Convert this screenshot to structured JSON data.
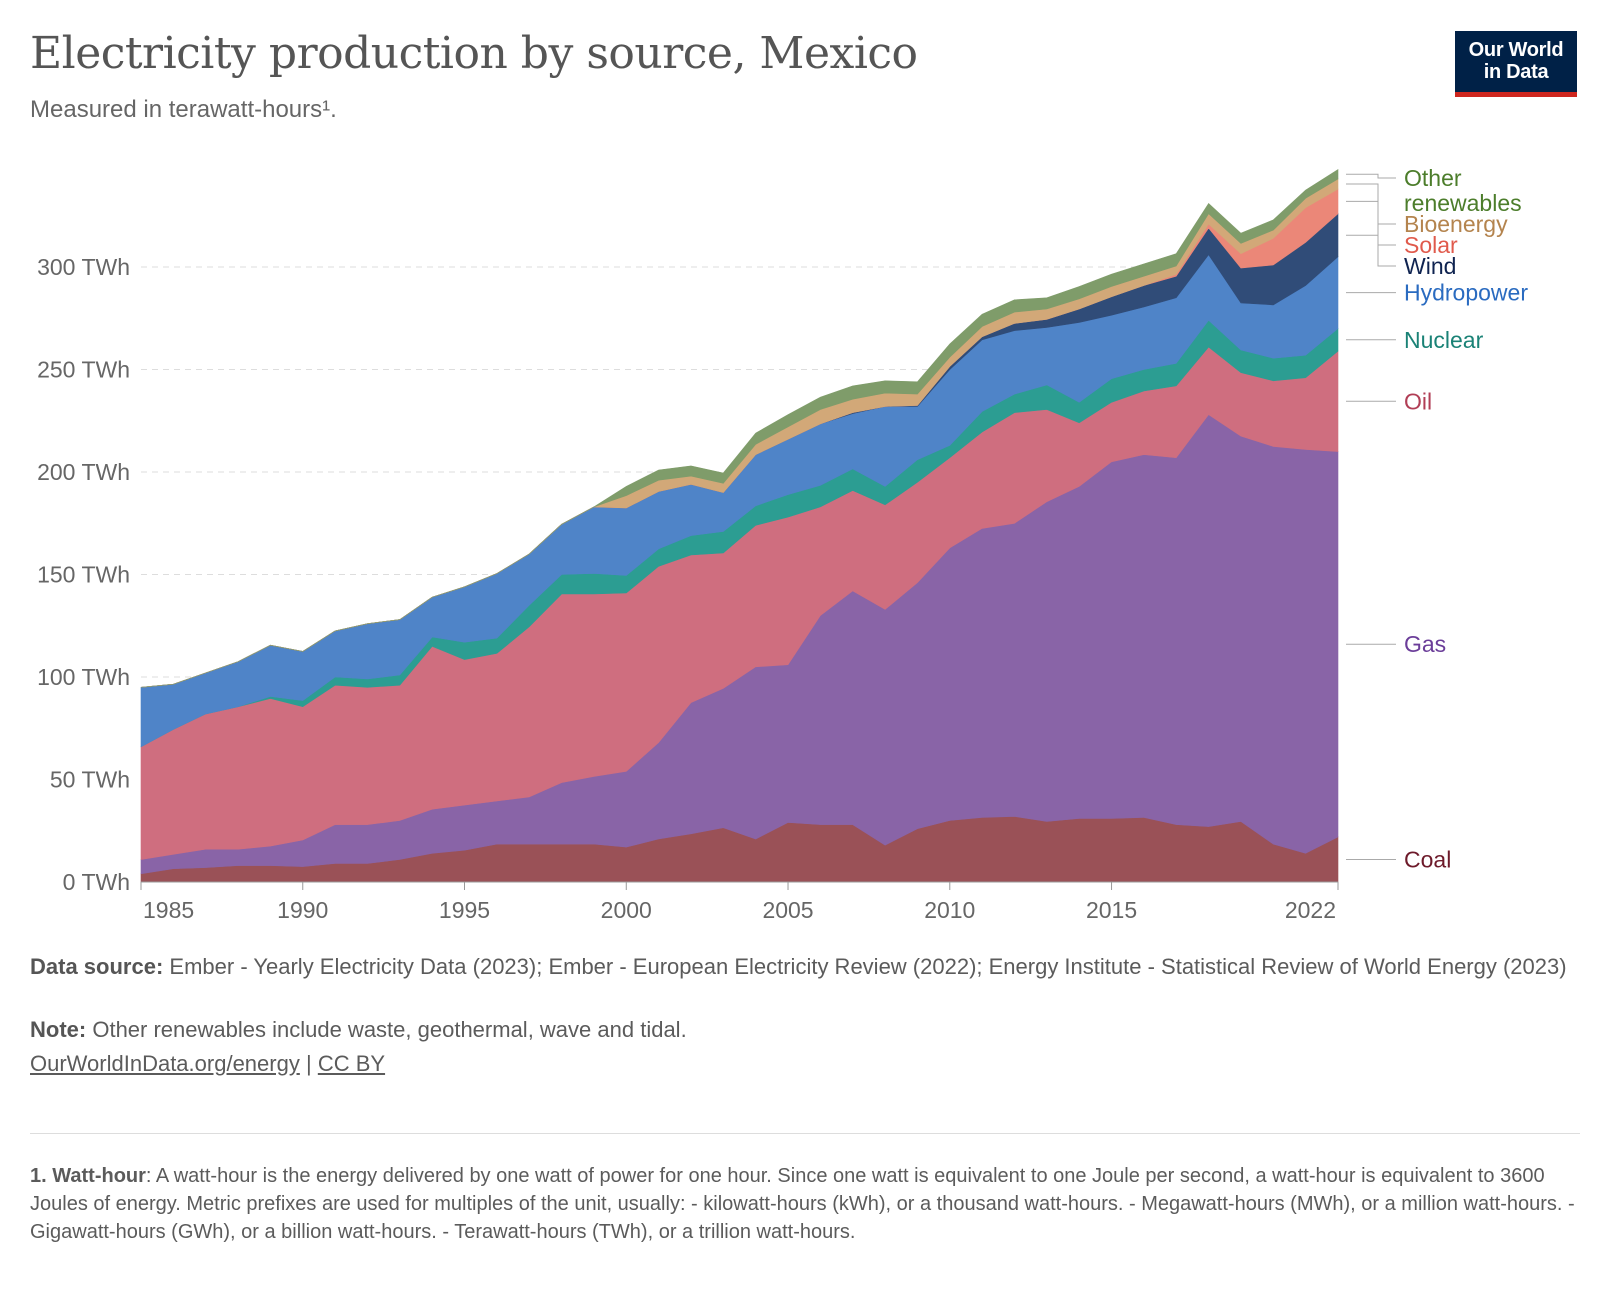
{
  "header": {
    "title": "Electricity production by source, Mexico",
    "subtitle": "Measured in terawatt-hours¹.",
    "logo_line1": "Our World",
    "logo_line2": "in Data"
  },
  "chart_data": {
    "type": "area",
    "stacked": true,
    "ylim": [
      0,
      350
    ],
    "xlim": [
      1985,
      2022
    ],
    "y_ticks": [
      {
        "value": 0,
        "label": "0 TWh"
      },
      {
        "value": 50,
        "label": "50 TWh"
      },
      {
        "value": 100,
        "label": "100 TWh"
      },
      {
        "value": 150,
        "label": "150 TWh"
      },
      {
        "value": 200,
        "label": "200 TWh"
      },
      {
        "value": 250,
        "label": "250 TWh"
      },
      {
        "value": 300,
        "label": "300 TWh"
      }
    ],
    "x_ticks": [
      {
        "value": 1985,
        "label": "1985"
      },
      {
        "value": 1990,
        "label": "1990"
      },
      {
        "value": 1995,
        "label": "1995"
      },
      {
        "value": 2000,
        "label": "2000"
      },
      {
        "value": 2005,
        "label": "2005"
      },
      {
        "value": 2010,
        "label": "2010"
      },
      {
        "value": 2015,
        "label": "2015"
      },
      {
        "value": 2022,
        "label": "2022"
      }
    ],
    "grid": "horizontal dashed",
    "legend": "right, inline labels",
    "x": [
      1985,
      1986,
      1987,
      1988,
      1989,
      1990,
      1991,
      1992,
      1993,
      1994,
      1995,
      1996,
      1997,
      1998,
      1999,
      2000,
      2001,
      2002,
      2003,
      2004,
      2005,
      2006,
      2007,
      2008,
      2009,
      2010,
      2011,
      2012,
      2013,
      2014,
      2015,
      2016,
      2017,
      2018,
      2019,
      2020,
      2021,
      2022
    ],
    "series": [
      {
        "name": "Coal",
        "color": "#9a5157",
        "label_color": "#6d1a2a",
        "values": [
          4,
          6.5,
          7,
          8,
          8,
          7.5,
          9,
          9,
          11,
          14,
          15.5,
          18.5,
          18.5,
          18.5,
          18.5,
          17,
          21,
          23.5,
          26.5,
          21,
          29,
          28,
          28,
          18,
          26,
          30,
          31.5,
          32,
          29.5,
          31,
          31,
          31.5,
          28,
          27,
          29.5,
          18.5,
          14,
          22
        ]
      },
      {
        "name": "Gas",
        "color": "#8964a7",
        "label_color": "#6b3d99",
        "values": [
          7,
          7,
          9,
          8,
          9.5,
          13,
          19,
          19,
          19,
          21.5,
          22,
          21,
          23,
          30,
          33,
          37,
          47,
          64,
          68,
          84,
          77,
          102,
          114,
          115,
          120,
          133,
          141,
          143,
          156,
          162,
          174,
          177,
          179,
          201,
          188,
          194,
          197,
          188
        ]
      },
      {
        "name": "Oil",
        "color": "#cf6e7f",
        "label_color": "#b13e56",
        "values": [
          55,
          61,
          66,
          69.5,
          72,
          65,
          68,
          67,
          66,
          79.5,
          71,
          72,
          83,
          92,
          89,
          87,
          86,
          72,
          66,
          69,
          72,
          53,
          49,
          51,
          49,
          44,
          47,
          54,
          45,
          31,
          29,
          31,
          35,
          33,
          31,
          32,
          35,
          49
        ]
      },
      {
        "name": "Nuclear",
        "color": "#2c9d92",
        "label_color": "#1a8276",
        "values": [
          0,
          0,
          0,
          0,
          1,
          3,
          4,
          4,
          5,
          4.5,
          8.5,
          7.5,
          10.5,
          9.5,
          10,
          8.5,
          8.5,
          9.5,
          10.5,
          9.5,
          11,
          10.5,
          10.5,
          9,
          11,
          6,
          10,
          9,
          12,
          10,
          11.5,
          10.5,
          11,
          13,
          11,
          11,
          11,
          11
        ]
      },
      {
        "name": "Hydropower",
        "color": "#4f84c8",
        "label_color": "#2a6bc0",
        "values": [
          29,
          22,
          20,
          22,
          25,
          24,
          22.5,
          27,
          27,
          19.5,
          27,
          31.5,
          25,
          24.5,
          32.5,
          33,
          28,
          25,
          19,
          25,
          27,
          30,
          27,
          39,
          26,
          37,
          35,
          31,
          28,
          39,
          31,
          30.5,
          32,
          32,
          23,
          26,
          34,
          35
        ]
      },
      {
        "name": "Wind",
        "color": "#304c78",
        "label_color": "#0f2350",
        "values": [
          0,
          0,
          0,
          0,
          0,
          0,
          0,
          0,
          0,
          0,
          0,
          0,
          0,
          0,
          0,
          0,
          0,
          0,
          0,
          0,
          0,
          0,
          0.5,
          0,
          0.5,
          1.5,
          1.5,
          3.5,
          4,
          6.5,
          9,
          10.5,
          10.5,
          13,
          17,
          19.5,
          21,
          21
        ]
      },
      {
        "name": "Solar",
        "color": "#eb8778",
        "label_color": "#e05a4c",
        "values": [
          0,
          0,
          0,
          0,
          0,
          0,
          0,
          0,
          0,
          0,
          0,
          0,
          0,
          0,
          0,
          0,
          0,
          0,
          0,
          0,
          0,
          0,
          0,
          0,
          0,
          0,
          0,
          0,
          0,
          0,
          0,
          0,
          1,
          2,
          7,
          13,
          17,
          12
        ]
      },
      {
        "name": "Bioenergy",
        "color": "#d2a878",
        "label_color": "#b4844e",
        "values": [
          0,
          0,
          0,
          0,
          0,
          0,
          0,
          0,
          0,
          0,
          0,
          0,
          0,
          0,
          0,
          6,
          5.5,
          4,
          4.5,
          5,
          6,
          7,
          6.5,
          6.5,
          5.5,
          4.5,
          5,
          5.5,
          5,
          5,
          5,
          4.5,
          4,
          5,
          5,
          4,
          4.5,
          5
        ]
      },
      {
        "name": "Other\nrenewables",
        "color": "#7f9c6a",
        "label_color": "#4c7d2b",
        "values": [
          0,
          0,
          0,
          0,
          0,
          0,
          0,
          0,
          0,
          0,
          0,
          0,
          0,
          0,
          0,
          4.5,
          5,
          5,
          5,
          5.5,
          6,
          6,
          6.5,
          6,
          6,
          6.5,
          6,
          6,
          5.5,
          6,
          6,
          6,
          6,
          5,
          5,
          5,
          4,
          4.5
        ]
      }
    ]
  },
  "footer": {
    "source_label": "Data source:",
    "source_text": "Ember - Yearly Electricity Data (2023); Ember - European Electricity Review (2022); Energy Institute - Statistical Review of World Energy (2023)",
    "note_label": "Note:",
    "note_text": "Other renewables include waste, geothermal, wave and tidal.",
    "link_text": "OurWorldInData.org/energy",
    "separator": "|",
    "license_text": "CC BY"
  },
  "footnote": {
    "label": "1. Watt-hour",
    "text": ": A watt-hour is the energy delivered by one watt of power for one hour. Since one watt is equivalent to one Joule per second, a watt-hour is equivalent to 3600 Joules of energy. Metric prefixes are used for multiples of the unit, usually: - kilowatt-hours (kWh), or a thousand watt-hours. - Megawatt-hours (MWh), or a million watt-hours. - Gigawatt-hours (GWh), or a billion watt-hours. - Terawatt-hours (TWh), or a trillion watt-hours."
  }
}
